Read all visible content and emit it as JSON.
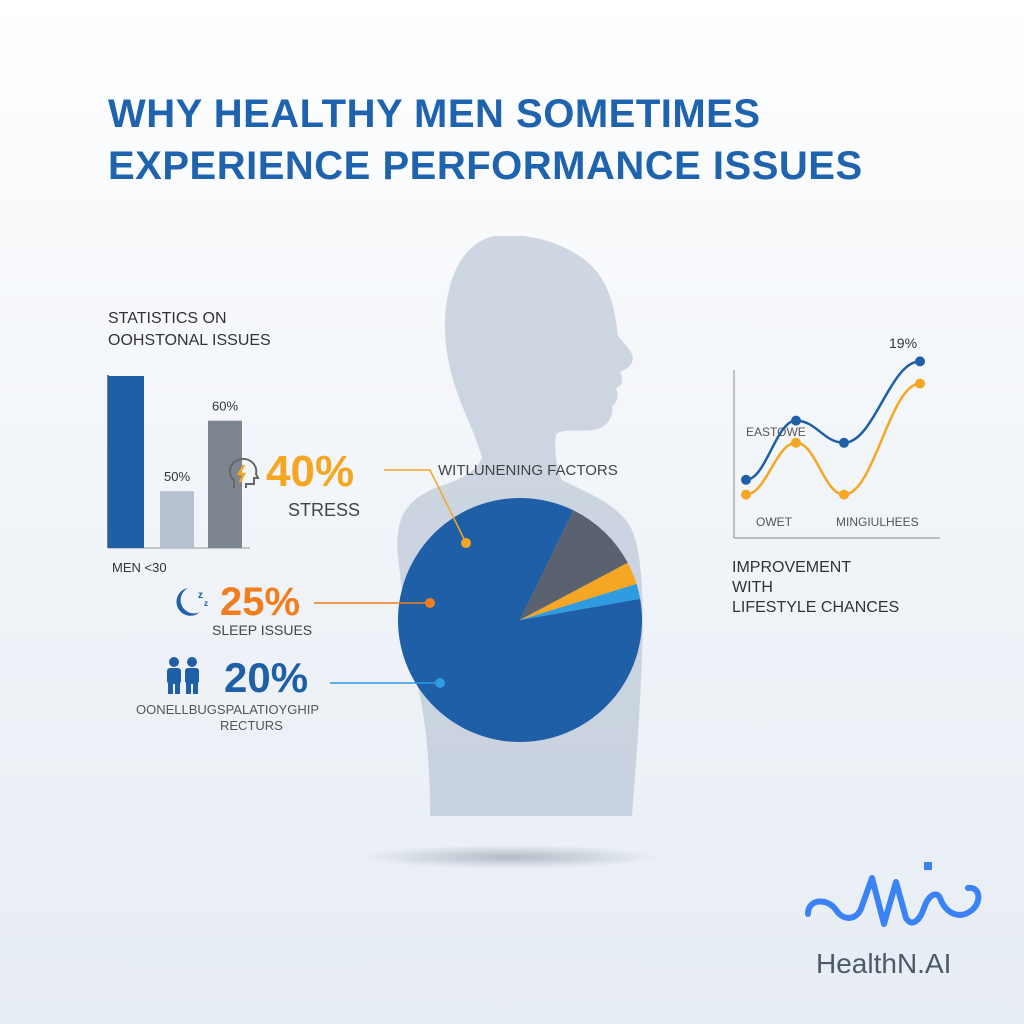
{
  "title": {
    "line1": "WHY HEALTHY MEN SOMETIMES",
    "line2": "EXPERIENCE PERFORMANCE ISSUES"
  },
  "stats": {
    "header_line1": "STATISTICS ON",
    "header_line2": "OOHSTONAL ISSUES"
  },
  "pie": {
    "title": "WITLUNENING FACTORS"
  },
  "callouts": [
    {
      "pct": "40%",
      "label": "STRESS",
      "color": "#f5a623",
      "icon": "stress-head-icon"
    },
    {
      "pct": "25%",
      "label": "SLEEP ISSUES",
      "color": "#f07e1e",
      "icon": "moon-sleep-icon"
    },
    {
      "pct": "20%",
      "label_line1": "OONELLBUGSPALATIOYGHIP",
      "label_line2": "RECTURS",
      "color": "#1f5fa8",
      "icon": "couple-icon"
    }
  ],
  "improvement": {
    "line1": "IMPROVEMENT",
    "line2": "WITH",
    "line3": "LIFESTYLE CHANCES"
  },
  "brand": {
    "name": "HealthN.AI",
    "color": "#3b82f6"
  },
  "colors": {
    "title": "#1f63ae",
    "dark_blue": "#1f5fa8",
    "gray_bar": "#a8b4c6",
    "dark_gray": "#6b7480",
    "orange": "#f5a623",
    "light_blue": "#2f9be0",
    "slate": "#59626e"
  },
  "chart_data": [
    {
      "type": "bar",
      "title": "",
      "categories": [
        "MEN <30",
        "",
        ""
      ],
      "values": [
        null,
        50,
        60
      ],
      "data_labels": [
        "",
        "50%",
        "60%"
      ],
      "visual_heights_fraction": [
        1.0,
        0.33,
        0.74
      ],
      "colors": [
        "#1f5fa8",
        "#b6c1d2",
        "#7d8590"
      ]
    },
    {
      "type": "pie",
      "title": "WITLUNENING FACTORS",
      "slices": [
        {
          "name": "",
          "value": 85,
          "color": "#1f5fa8"
        },
        {
          "name": "",
          "value": 10,
          "color": "#59626e"
        },
        {
          "name": "",
          "value": 3,
          "color": "#f5a623"
        },
        {
          "name": "",
          "value": 2,
          "color": "#2f9be0"
        }
      ]
    },
    {
      "type": "line",
      "title": "",
      "annotations": [
        "EASTOWE",
        "OWET",
        "MINGIULHEES",
        "19%"
      ],
      "series": [
        {
          "color": "#1f5fa8",
          "values": [
            0.15,
            0.55,
            0.4,
            0.95
          ]
        },
        {
          "color": "#f5a623",
          "values": [
            0.05,
            0.4,
            0.05,
            0.8
          ]
        }
      ]
    }
  ]
}
